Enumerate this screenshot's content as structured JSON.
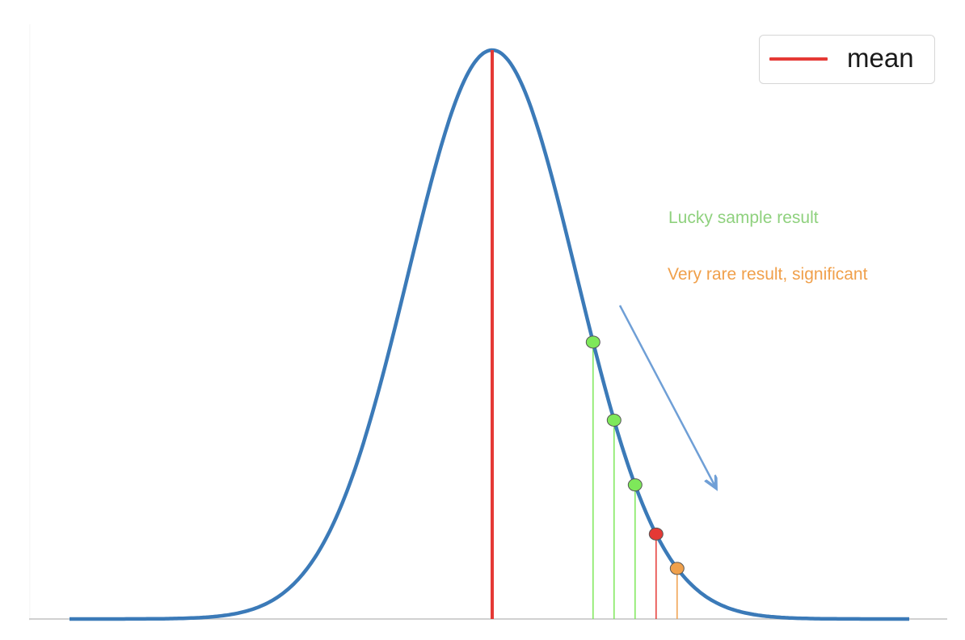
{
  "legend": {
    "entries": [
      {
        "label": "mean",
        "color": "#e53935"
      }
    ]
  },
  "annotations": {
    "lucky": {
      "text": "Lucky sample result",
      "color": "#8fd17e"
    },
    "rare": {
      "text": "Very rare result, significant",
      "color": "#f0a04b"
    }
  },
  "colors": {
    "curve": "#3b7ab8",
    "mean_line": "#e53935",
    "arrow": "#6f9fd6",
    "green_point": "#7ee85a",
    "red_point": "#e53935",
    "orange_point": "#f0a04b",
    "axis": "#d0d0d0"
  },
  "chart_data": {
    "type": "line",
    "distribution": "normal",
    "mean_marker": "mean",
    "highlighted_points": [
      {
        "z": 1.2,
        "kind": "lucky",
        "color": "#7ee85a"
      },
      {
        "z": 1.45,
        "kind": "lucky",
        "color": "#7ee85a"
      },
      {
        "z": 1.7,
        "kind": "lucky",
        "color": "#7ee85a"
      },
      {
        "z": 1.95,
        "kind": "threshold",
        "color": "#e53935"
      },
      {
        "z": 2.2,
        "kind": "rare",
        "color": "#f0a04b"
      }
    ],
    "grid": false,
    "legend_position": "top-right"
  }
}
